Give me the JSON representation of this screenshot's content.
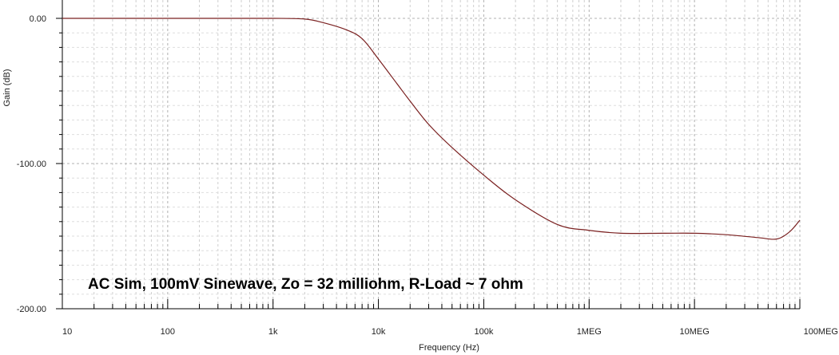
{
  "chart_data": {
    "type": "line",
    "title": "",
    "xlabel": "Frequency (Hz)",
    "ylabel": "Gain (dB)",
    "x_scale": "log",
    "xlim": [
      10,
      100000000
    ],
    "ylim": [
      -200,
      10
    ],
    "grid": true,
    "x_tick_labels": [
      "10",
      "100",
      "1k",
      "10k",
      "100k",
      "1MEG",
      "10MEG",
      "100MEG"
    ],
    "x_tick_values": [
      10,
      100,
      1000,
      10000,
      100000,
      1000000,
      10000000,
      100000000
    ],
    "y_tick_labels": [
      "0.00",
      "-100.00",
      "-200.00"
    ],
    "y_tick_values": [
      0,
      -100,
      -200
    ],
    "annotation": "AC Sim, 100mV Sinewave, Zo = 32 milliohm, R-Load ~ 7 ohm",
    "series": [
      {
        "color": "#7a2020",
        "x": [
          10,
          100,
          1000,
          2000,
          3000,
          5000,
          7000,
          10000,
          15000,
          20000,
          30000,
          50000,
          100000,
          200000,
          500000,
          1000000,
          2000000,
          5000000,
          10000000,
          20000000,
          40000000,
          60000000,
          80000000,
          100000000
        ],
        "y": [
          0,
          0,
          0,
          -0.5,
          -3,
          -8,
          -14,
          -28,
          -45,
          -57,
          -73,
          -89,
          -108,
          -125,
          -142,
          -146,
          -148,
          -148,
          -148,
          -149,
          -151,
          -152,
          -147,
          -139
        ]
      }
    ]
  }
}
